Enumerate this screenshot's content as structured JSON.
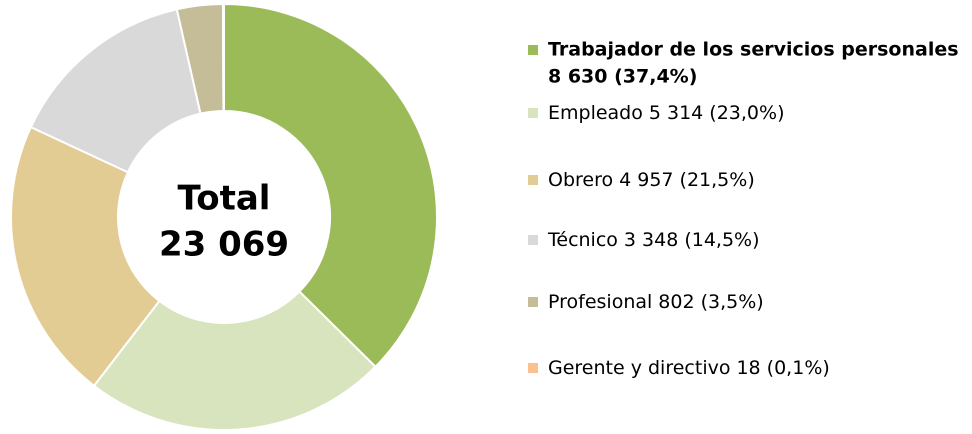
{
  "chart_data": {
    "type": "donut",
    "categories": [
      "Trabajador de los servicios personales",
      "Empleado",
      "Obrero",
      "Técnico",
      "Profesional",
      "Gerente y directivo"
    ],
    "values": [
      8630,
      5314,
      4957,
      3348,
      802,
      18
    ],
    "value_labels": [
      "8 630 (37,4%)",
      "5 314 (23,0%)",
      "4 957 (21,5%)",
      "3 348 (14,5%)",
      "802 (3,5%)",
      "18 (0,1%)"
    ],
    "colors": [
      "#9bbb59",
      "#d7e4bd",
      "#e3cb94",
      "#d9d9d9",
      "#c4bd97",
      "#fac090"
    ],
    "center_text": [
      "Total",
      "23 069"
    ],
    "legend": "right"
  }
}
